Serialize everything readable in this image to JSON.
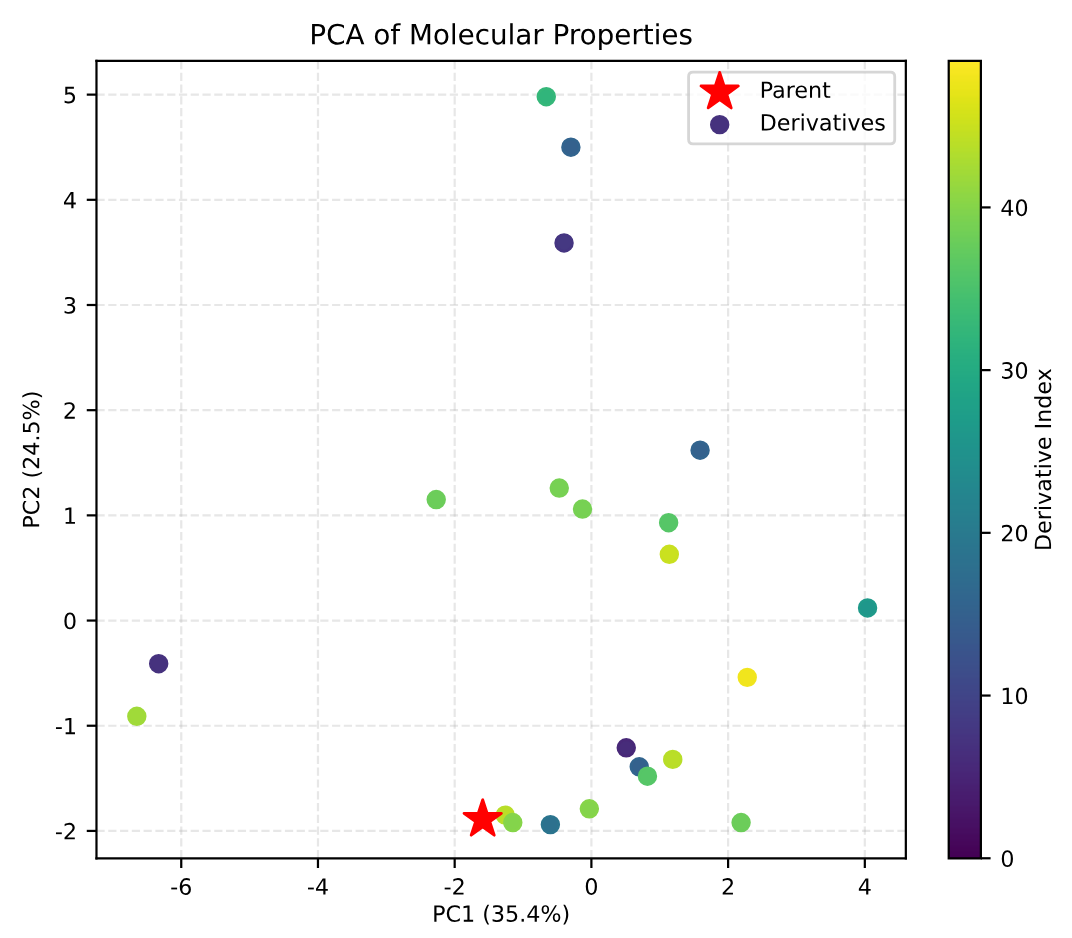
{
  "chart_data": {
    "type": "scatter",
    "title": "PCA of Molecular Properties",
    "xlabel": "PC1 (35.4%)",
    "ylabel": "PC2 (24.5%)",
    "clabel": "Derivative Index",
    "xlim": [
      -7.24,
      4.6
    ],
    "xticks": [
      -6,
      -4,
      -2,
      0,
      2,
      4
    ],
    "ylim": [
      -2.26,
      5.32
    ],
    "yticks": [
      -2,
      -1,
      0,
      1,
      2,
      3,
      4,
      5
    ],
    "grid": true,
    "legend": "top right",
    "clim": [
      0,
      49
    ],
    "cticks": [
      0,
      10,
      20,
      30,
      40
    ],
    "series": [
      {
        "name": "Parent",
        "color": "#ff0000",
        "marker": "star",
        "x": [
          -1.59
        ],
        "values": [
          -1.89
        ]
      },
      {
        "name": "Derivatives",
        "marker": "circle",
        "colors": [
          "#46327e",
          "#a0da39",
          "#6ccd5a",
          "#b8de29",
          "#86d549",
          "#35b779",
          "#32648e",
          "#453581",
          "#32648e",
          "#77d153",
          "#77d153",
          "#56c667",
          "#c9e020",
          "#1f9a8a",
          "#f1e51d",
          "#482878",
          "#32648e",
          "#56c667",
          "#b8de29",
          "#86d549",
          "#2b748e",
          "#6ccd5a"
        ],
        "x": [
          -6.33,
          -6.65,
          -2.27,
          -1.26,
          -1.15,
          -0.66,
          -0.3,
          -0.4,
          1.59,
          -0.47,
          -0.13,
          1.13,
          1.14,
          4.04,
          2.28,
          0.51,
          0.7,
          0.82,
          1.19,
          -0.03,
          -0.6,
          2.19
        ],
        "values": [
          -0.41,
          -0.91,
          1.15,
          -1.85,
          -1.92,
          4.98,
          4.5,
          3.59,
          1.62,
          1.26,
          1.06,
          0.93,
          0.63,
          0.12,
          -0.54,
          -1.21,
          -1.39,
          -1.48,
          -1.32,
          -1.79,
          -1.94,
          -1.92
        ],
        "cvalues": [
          7,
          42,
          38,
          44,
          40,
          32,
          15,
          8,
          15,
          39,
          39,
          36,
          45,
          26,
          48,
          6,
          15,
          36,
          44,
          40,
          18,
          38
        ]
      }
    ]
  }
}
